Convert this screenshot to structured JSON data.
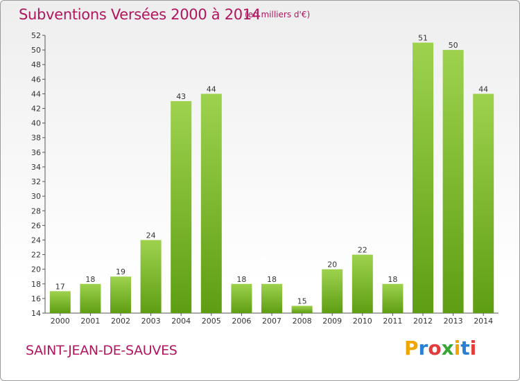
{
  "header": {
    "title": "Subventions Versées 2000 à 2014",
    "unit": "(en milliers d'€)"
  },
  "footer": {
    "commune": "SAINT-JEAN-DE-SAUVES",
    "logo": [
      "P",
      "r",
      "o",
      "x",
      "i",
      "t",
      "i"
    ],
    "logo_colors": [
      "#f0a500",
      "#2a7fd4",
      "#e23c3c",
      "#3aa63a",
      "#f0a500",
      "#2a7fd4",
      "#e23c3c"
    ]
  },
  "chart_data": {
    "type": "bar",
    "title": "Subventions Versées 2000 à 2014",
    "subtitle": "(en milliers d'€)",
    "categories": [
      "2000",
      "2001",
      "2002",
      "2003",
      "2004",
      "2005",
      "2006",
      "2007",
      "2008",
      "2009",
      "2010",
      "2011",
      "2012",
      "2013",
      "2014"
    ],
    "values": [
      17,
      18,
      19,
      24,
      43,
      44,
      18,
      18,
      15,
      20,
      22,
      18,
      51,
      50,
      44
    ],
    "ylim": [
      14,
      52
    ],
    "yticks": [
      14,
      16,
      18,
      20,
      22,
      24,
      26,
      28,
      30,
      32,
      34,
      36,
      38,
      40,
      42,
      44,
      46,
      48,
      50,
      52
    ],
    "grid": false,
    "bar_color_light": "#9ed24e",
    "bar_color_dark": "#5e9e12"
  }
}
